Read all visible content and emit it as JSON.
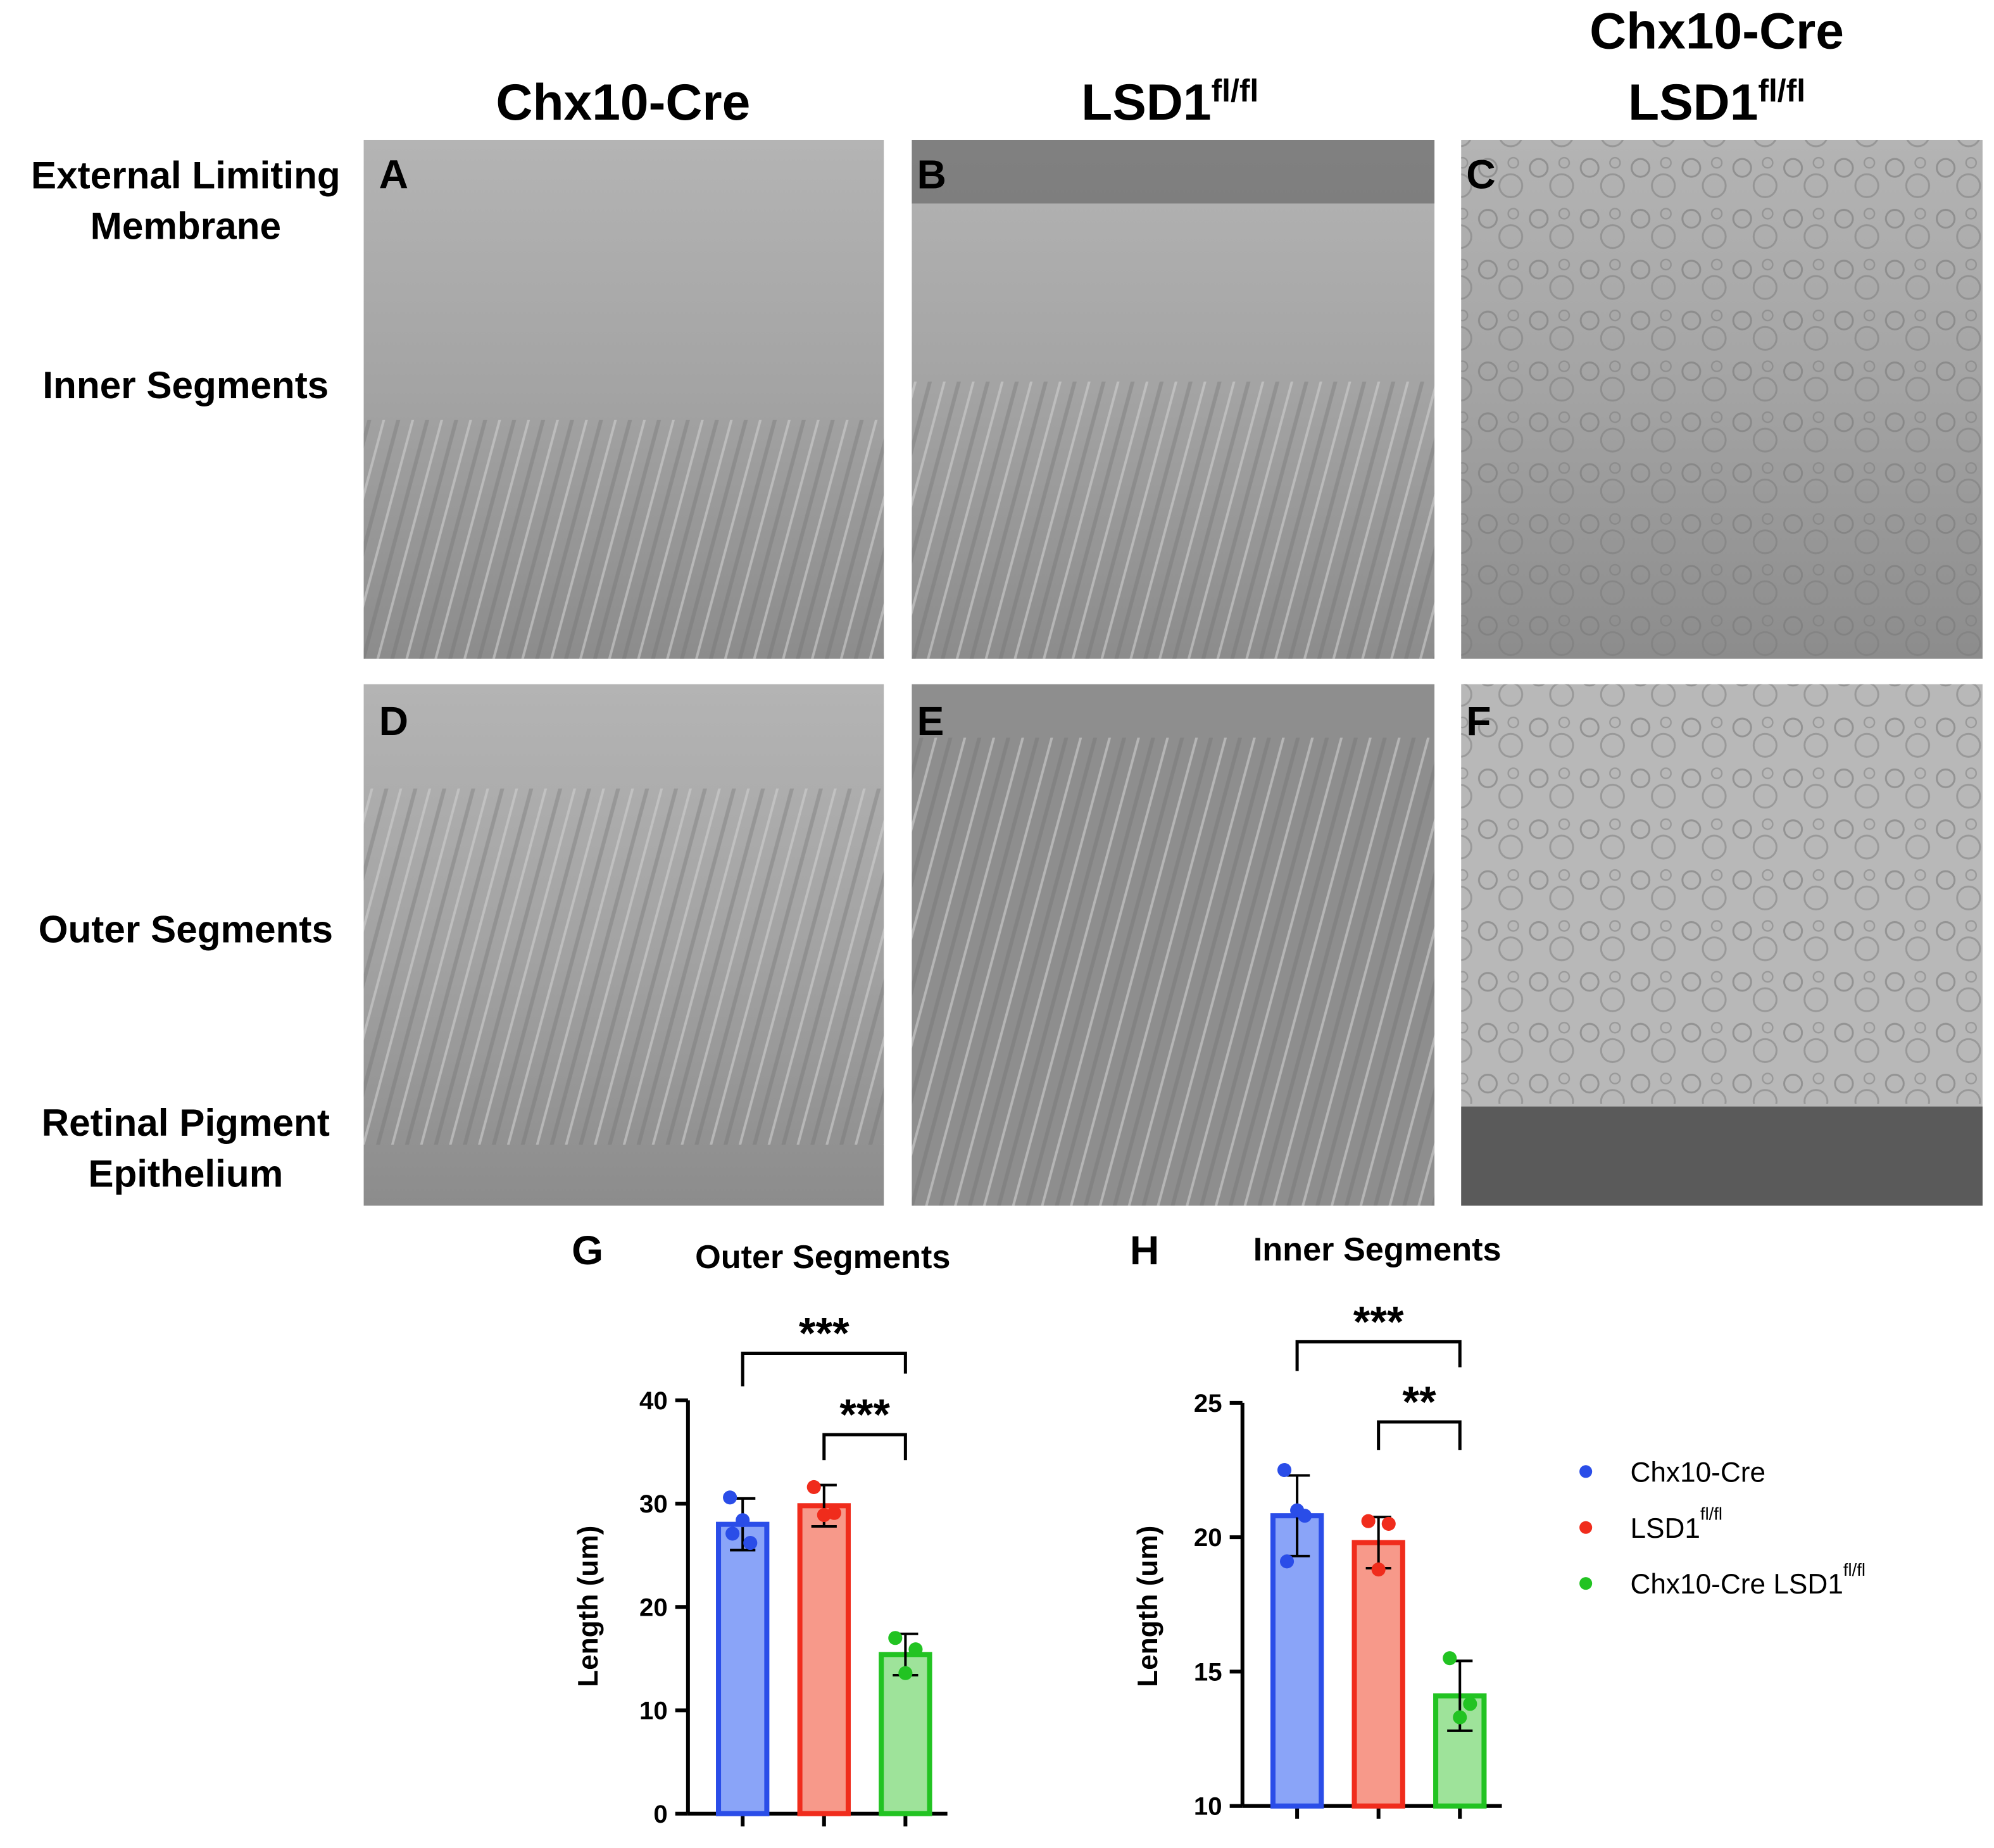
{
  "column_headers": [
    {
      "text": "Chx10-Cre"
    },
    {
      "text": "LSD1",
      "superscript": "fl/fl"
    },
    {
      "line1": "Chx10-Cre",
      "text": "LSD1",
      "superscript": "fl/fl"
    }
  ],
  "row_labels": [
    [
      "External Limiting",
      "Membrane"
    ],
    [
      "Inner Segments"
    ],
    [
      "Outer Segments"
    ],
    [
      "Retinal Pigment",
      "Epithelium"
    ]
  ],
  "panels": [
    "A",
    "B",
    "C",
    "D",
    "E",
    "F"
  ],
  "chart_data": [
    {
      "type": "bar",
      "panel": "G",
      "title": "Outer Segments",
      "y_label": "Length (um)",
      "ylim": [
        0,
        40
      ],
      "yticks": [
        0,
        10,
        20,
        30,
        40
      ],
      "annotations": [
        "***",
        "***"
      ],
      "series": [
        {
          "color": "#2a4de8",
          "fill": "#8aa4f8",
          "values": [
            28.0
          ],
          "errors": [
            2.5
          ],
          "points": [
            [
              30.6,
              28.4,
              26.2,
              27.1
            ]
          ]
        },
        {
          "color": "#f02c1c",
          "fill": "#f7998a",
          "values": [
            29.8
          ],
          "errors": [
            2.0
          ],
          "points": [
            [
              31.6,
              29.1,
              28.9
            ]
          ]
        },
        {
          "color": "#22c322",
          "fill": "#9ee39a",
          "values": [
            15.4
          ],
          "errors": [
            2.0
          ],
          "points": [
            [
              17.0,
              15.9,
              13.6
            ]
          ]
        }
      ]
    },
    {
      "type": "bar",
      "panel": "H",
      "title": "Inner Segments",
      "y_label": "Length (um)",
      "ylim": [
        10,
        25
      ],
      "yticks": [
        10,
        15,
        20,
        25
      ],
      "annotations": [
        "***",
        "**"
      ],
      "series": [
        {
          "name": "Chx10-Cre",
          "color": "#2a4de8",
          "fill": "#8aa4f8",
          "values": [
            20.8
          ],
          "errors": [
            1.5
          ],
          "points": [
            [
              22.5,
              21.0,
              20.8,
              19.1
            ]
          ]
        },
        {
          "name": "LSD1",
          "superscript": "fl/fl",
          "color": "#f02c1c",
          "fill": "#f7998a",
          "values": [
            19.8
          ],
          "errors": [
            0.95
          ],
          "points": [
            [
              20.6,
              20.5,
              18.8
            ]
          ]
        },
        {
          "name": "Chx10-Cre LSD1",
          "superscript": "fl/fl",
          "color": "#22c322",
          "fill": "#9ee39a",
          "values": [
            14.1
          ],
          "errors": [
            1.3
          ],
          "points": [
            [
              15.5,
              13.8,
              13.3
            ]
          ]
        }
      ]
    }
  ]
}
